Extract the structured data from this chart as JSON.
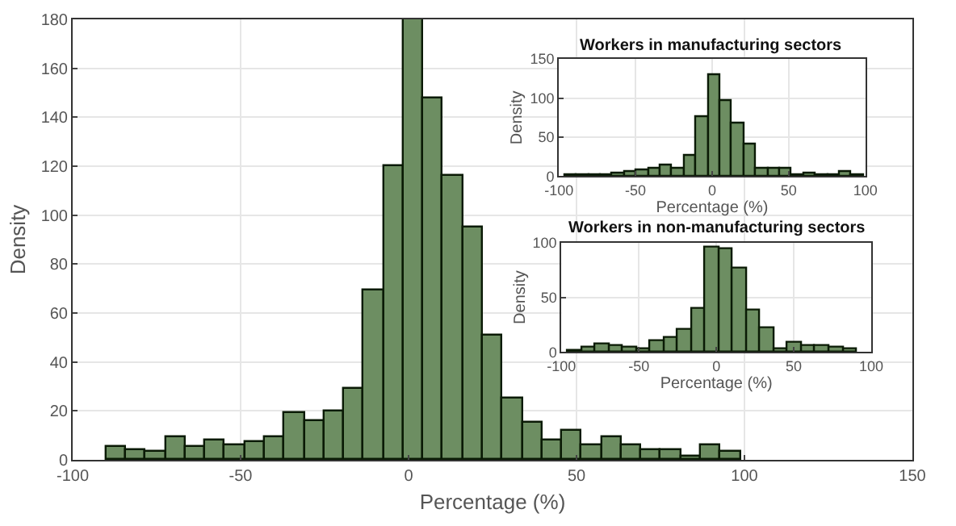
{
  "chart_data": [
    {
      "type": "histogram",
      "xlabel": "Percentage (%)",
      "ylabel": "Density",
      "color": "#6d8e62",
      "bins": [
        -90,
        -84.1,
        -78.2,
        -72.3,
        -66.4,
        -60.5,
        -54.6,
        -48.7,
        -42.8,
        -36.9,
        -31,
        -25.1,
        -19.2,
        -13.3,
        -7.4,
        -1.5,
        4.4,
        10.3,
        16.2,
        22.1,
        28,
        33.9,
        39.8,
        45.7,
        51.6,
        57.5,
        63.4,
        69.3,
        75.2,
        81.1,
        87,
        92.9,
        98.8
      ],
      "values": [
        5,
        4,
        3,
        9,
        5,
        8,
        6,
        7,
        9,
        19,
        16,
        20,
        29,
        69,
        120,
        180,
        148,
        116,
        95,
        51,
        25,
        15,
        8,
        12,
        6,
        9,
        6,
        4,
        4,
        1,
        6,
        3
      ],
      "xlim": [
        -100,
        150
      ],
      "xticks": [
        -100,
        -50,
        0,
        50,
        100,
        150
      ],
      "ylim": [
        0,
        180
      ],
      "yticks": [
        0,
        20,
        40,
        60,
        80,
        100,
        120,
        140,
        160,
        180
      ],
      "grid": true
    },
    {
      "type": "histogram",
      "title": "Workers in manufacturing sectors",
      "xlabel": "Percentage (%)",
      "ylabel": "Density",
      "color": "#6d8e62",
      "bins": [
        -96.1,
        -88.3,
        -80.5,
        -72.7,
        -64.9,
        -57.1,
        -49.3,
        -41.5,
        -33.7,
        -25.9,
        -18.1,
        -10.3,
        -2.5,
        5.3,
        13.1,
        20.9,
        28.7,
        36.5,
        44.3,
        52.1,
        59.9,
        67.7,
        75.5,
        83.3,
        91.1,
        98.9
      ],
      "values": [
        2,
        1,
        2,
        2,
        3,
        5,
        8,
        9,
        14,
        9,
        27,
        75,
        129,
        96,
        67,
        40,
        10,
        10,
        10,
        2,
        3,
        2,
        1,
        5,
        2
      ],
      "xlim": [
        -100,
        100
      ],
      "xticks": [
        -100,
        -50,
        0,
        50,
        100
      ],
      "ylim": [
        0,
        150
      ],
      "yticks": [
        0,
        50,
        100,
        150
      ],
      "grid": true
    },
    {
      "type": "histogram",
      "title": "Workers in non-manufacturing sectors",
      "xlabel": "Percentage (%)",
      "ylabel": "Density",
      "color": "#6d8e62",
      "bins": [
        -95.7,
        -86.8,
        -77.9,
        -69.1,
        -60.2,
        -51.3,
        -42.4,
        -33.5,
        -24.7,
        -15.8,
        -6.9,
        2,
        10.9,
        19.7,
        28.6,
        37.5,
        46.4,
        55.3,
        64.1,
        73,
        81.9,
        90.8
      ],
      "values": [
        1,
        4,
        7,
        6,
        4,
        2,
        10,
        13,
        20,
        40,
        95,
        94,
        77,
        38,
        22,
        2,
        8,
        6,
        6,
        4,
        3
      ],
      "xlim": [
        -100,
        100
      ],
      "xticks": [
        -100,
        -50,
        0,
        50,
        100
      ],
      "ylim": [
        0,
        100
      ],
      "yticks": [
        0,
        50,
        100
      ],
      "grid": true
    }
  ]
}
